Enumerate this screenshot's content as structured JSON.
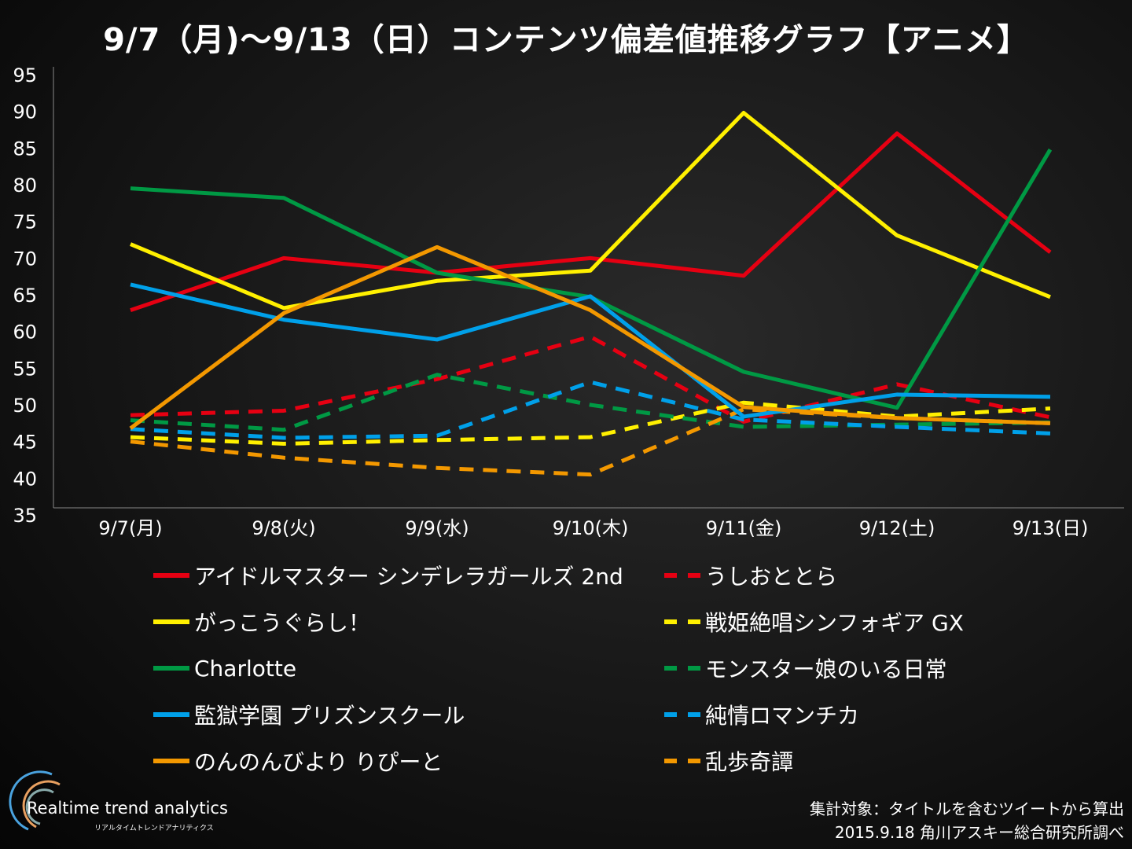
{
  "title": "9/7（月)～9/13（日）コンテンツ偏差値推移グラフ【アニメ】",
  "chart_data": {
    "type": "line",
    "title": "9/7（月)～9/13（日）コンテンツ偏差値推移グラフ【アニメ】",
    "categories": [
      "9/7(月)",
      "9/8(火)",
      "9/9(水)",
      "9/10(木)",
      "9/11(金)",
      "9/12(土)",
      "9/13(日)"
    ],
    "ylim": [
      35,
      95
    ],
    "yticks": [
      95,
      90,
      85,
      80,
      75,
      70,
      65,
      60,
      55,
      50,
      45,
      40,
      35
    ],
    "grid": false,
    "legend_position": "bottom",
    "series": [
      {
        "name": "アイドルマスター シンデレラガールズ 2nd",
        "color": "#e60012",
        "dash": false,
        "values": [
          62.9,
          70.0,
          68.0,
          70.0,
          67.6,
          87.0,
          70.8
        ]
      },
      {
        "name": "うしおととら",
        "color": "#e60012",
        "dash": true,
        "values": [
          48.6,
          49.2,
          53.5,
          59.3,
          47.7,
          52.8,
          48.3
        ]
      },
      {
        "name": "がっこうぐらし！",
        "color": "#fff000",
        "dash": false,
        "values": [
          71.9,
          63.2,
          66.9,
          68.3,
          89.8,
          73.1,
          64.7
        ]
      },
      {
        "name": "戦姫絶唱シンフォギア GX",
        "color": "#fff000",
        "dash": true,
        "values": [
          45.6,
          44.7,
          45.2,
          45.6,
          50.3,
          48.4,
          49.5
        ]
      },
      {
        "name": "Charlotte",
        "color": "#009944",
        "dash": false,
        "values": [
          79.5,
          78.2,
          68.0,
          64.7,
          54.5,
          49.6,
          84.8
        ]
      },
      {
        "name": "モンスター娘のいる日常",
        "color": "#009944",
        "dash": true,
        "values": [
          47.9,
          46.6,
          54.1,
          50.0,
          47.0,
          47.3,
          47.6
        ]
      },
      {
        "name": "監獄学園 プリズンスクール",
        "color": "#00a0e9",
        "dash": false,
        "values": [
          66.4,
          61.6,
          58.9,
          64.8,
          48.4,
          51.4,
          51.1
        ]
      },
      {
        "name": "純情ロマンチカ",
        "color": "#00a0e9",
        "dash": true,
        "values": [
          46.7,
          45.5,
          45.8,
          53.1,
          48.0,
          47.0,
          46.1
        ]
      },
      {
        "name": "のんのんびより りぴーと",
        "color": "#f39800",
        "dash": false,
        "values": [
          46.8,
          62.5,
          71.5,
          62.9,
          49.7,
          48.2,
          47.5
        ]
      },
      {
        "name": "乱歩奇譚",
        "color": "#f39800",
        "dash": true,
        "values": [
          45.0,
          42.8,
          41.4,
          40.5,
          49.4,
          48.2,
          47.5
        ]
      }
    ]
  },
  "footer": {
    "line1": "集計対象：タイトルを含むツイートから算出",
    "line2": "2015.9.18 角川アスキー総合研究所調べ"
  },
  "logo": {
    "name": "Realtime trend analytics",
    "sub": "リアルタイムトレンドアナリティクス"
  }
}
